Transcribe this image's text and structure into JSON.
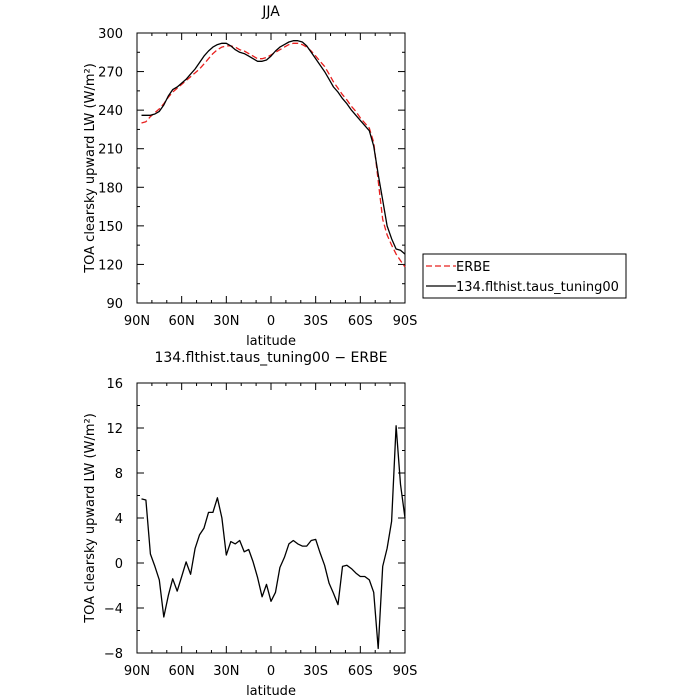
{
  "chart_data": [
    {
      "type": "line",
      "title": "JJA",
      "xlabel": "latitude",
      "ylabel": "TOA clearsky upward LW (W/m²)",
      "xlim": [
        90,
        -90
      ],
      "ylim": [
        90,
        300
      ],
      "xticks": [
        90,
        60,
        30,
        0,
        -30,
        -60,
        -90
      ],
      "xtick_labels": [
        "90N",
        "60N",
        "30N",
        "0",
        "30S",
        "60S",
        "90S"
      ],
      "yticks": [
        90,
        120,
        150,
        180,
        210,
        240,
        270,
        300
      ],
      "ytick_labels": [
        "90",
        "120",
        "150",
        "180",
        "210",
        "240",
        "270",
        "300"
      ],
      "legend": {
        "placement": "right",
        "entries": [
          "ERBE",
          "134.flthist.taus_tuning00"
        ]
      },
      "series": [
        {
          "name": "ERBE",
          "color": "#e8201f",
          "dash": "dashed",
          "x": [
            87,
            84,
            81,
            78,
            75,
            72,
            69,
            66,
            63,
            60,
            57,
            54,
            51,
            48,
            45,
            42,
            39,
            36,
            33,
            30,
            27,
            24,
            21,
            18,
            15,
            12,
            9,
            6,
            3,
            0,
            -3,
            -6,
            -9,
            -12,
            -15,
            -18,
            -21,
            -24,
            -27,
            -30,
            -33,
            -36,
            -39,
            -42,
            -45,
            -48,
            -51,
            -54,
            -57,
            -60,
            -63,
            -66,
            -69,
            -72,
            -75,
            -78,
            -81,
            -84,
            -87,
            -90
          ],
          "y": [
            230,
            231,
            235,
            238,
            241,
            245,
            250,
            254,
            257,
            260,
            263,
            266,
            269,
            272,
            276,
            280,
            284,
            287,
            289,
            290,
            290,
            289,
            287,
            286,
            284,
            282,
            280,
            280,
            281,
            283,
            285,
            287,
            289,
            291,
            292,
            292,
            291,
            289,
            286,
            282,
            278,
            274,
            268,
            262,
            257,
            252,
            248,
            243,
            239,
            234,
            230,
            226,
            215,
            185,
            155,
            143,
            135,
            128,
            123,
            118
          ]
        },
        {
          "name": "134.flthist.taus_tuning00",
          "color": "#000000",
          "dash": "solid",
          "x": [
            87,
            84,
            81,
            78,
            75,
            72,
            69,
            66,
            63,
            60,
            57,
            54,
            51,
            48,
            45,
            42,
            39,
            36,
            33,
            30,
            27,
            24,
            21,
            18,
            15,
            12,
            9,
            6,
            3,
            0,
            -3,
            -6,
            -9,
            -12,
            -15,
            -18,
            -21,
            -24,
            -27,
            -30,
            -33,
            -36,
            -39,
            -42,
            -45,
            -48,
            -51,
            -54,
            -57,
            -60,
            -63,
            -66,
            -69,
            -72,
            -75,
            -78,
            -81,
            -84,
            -87,
            -90
          ],
          "y": [
            236,
            236,
            236,
            237,
            239,
            244,
            251,
            256,
            258,
            261,
            264,
            268,
            272,
            277,
            282,
            286,
            289,
            291,
            292,
            292,
            290,
            287,
            285,
            284,
            282,
            280,
            278,
            278,
            279,
            282,
            286,
            289,
            291,
            293,
            294,
            294,
            293,
            290,
            285,
            280,
            275,
            270,
            264,
            258,
            254,
            249,
            245,
            240,
            236,
            232,
            228,
            224,
            212,
            190,
            170,
            150,
            140,
            132,
            131,
            128
          ]
        }
      ]
    },
    {
      "type": "line",
      "title": "134.flthist.taus_tuning00 − ERBE",
      "xlabel": "latitude",
      "ylabel": "TOA clearsky upward LW (W/m²)",
      "xlim": [
        90,
        -90
      ],
      "ylim": [
        -8,
        16
      ],
      "xticks": [
        90,
        60,
        30,
        0,
        -30,
        -60,
        -90
      ],
      "xtick_labels": [
        "90N",
        "60N",
        "30N",
        "0",
        "30S",
        "60S",
        "90S"
      ],
      "yticks": [
        -8,
        -4,
        0,
        4,
        8,
        12,
        16
      ],
      "ytick_labels": [
        "−8",
        "−4",
        "0",
        "4",
        "8",
        "12",
        "16"
      ],
      "series": [
        {
          "color": "#000000",
          "dash": "solid",
          "x": [
            87,
            84,
            81,
            78,
            75,
            72,
            69,
            66,
            63,
            60,
            57,
            54,
            51,
            48,
            45,
            42,
            39,
            36,
            33,
            30,
            27,
            24,
            21,
            18,
            15,
            12,
            9,
            6,
            3,
            0,
            -3,
            -6,
            -9,
            -12,
            -15,
            -18,
            -21,
            -24,
            -27,
            -30,
            -33,
            -36,
            -39,
            -42,
            -45,
            -48,
            -51,
            -54,
            -57,
            -60,
            -63,
            -66,
            -69,
            -72,
            -75,
            -78,
            -81,
            -84,
            -87,
            -90
          ],
          "y": [
            5.7,
            5.6,
            0.8,
            -0.3,
            -1.5,
            -4.8,
            -2.9,
            -1.4,
            -2.5,
            -1.2,
            0.1,
            -1,
            1.3,
            2.5,
            3.1,
            4.5,
            4.5,
            5.8,
            4,
            0.7,
            1.9,
            1.7,
            2,
            1,
            1.2,
            0.1,
            -1.3,
            -3,
            -1.9,
            -3.4,
            -2.6,
            -0.4,
            0.5,
            1.7,
            2,
            1.7,
            1.5,
            1.5,
            2,
            2.1,
            0.9,
            -0.2,
            -1.8,
            -2.7,
            -3.7,
            -0.3,
            -0.2,
            -0.5,
            -0.9,
            -1.2,
            -1.2,
            -1.5,
            -2.6,
            -7.6,
            -0.3,
            1.3,
            3.7,
            12.2,
            7,
            4
          ]
        }
      ]
    }
  ]
}
